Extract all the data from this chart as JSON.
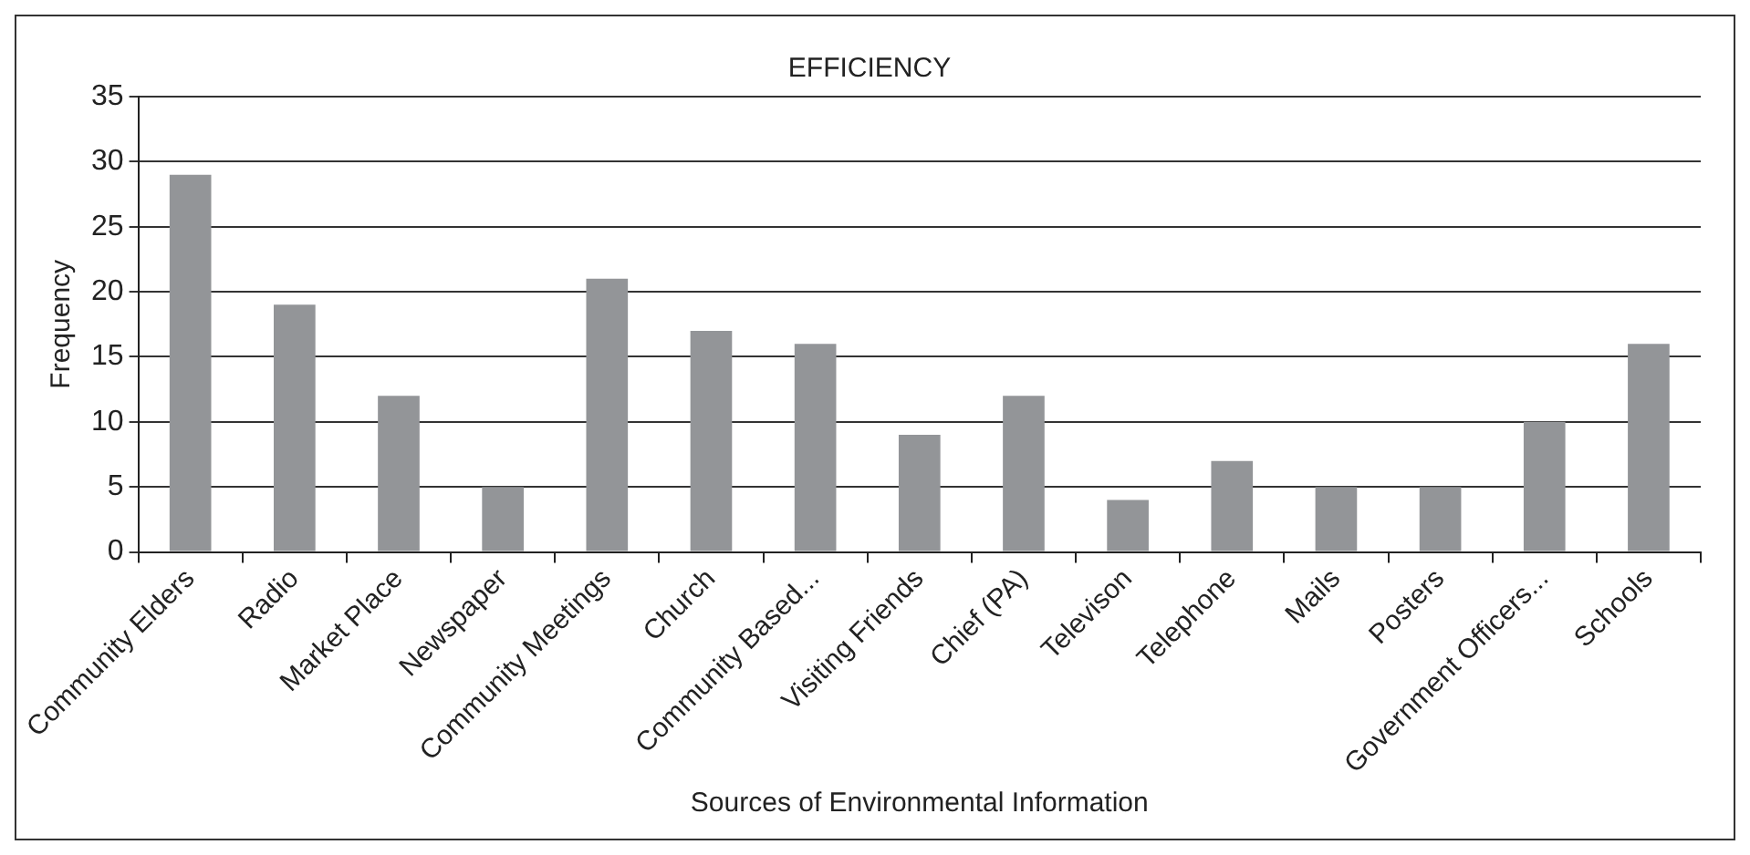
{
  "chart_data": {
    "type": "bar",
    "title": "EFFICIENCY",
    "xlabel": "Sources of Environmental Information",
    "ylabel": "Frequency",
    "categories": [
      "Community Elders",
      "Radio",
      "Market Place",
      "Newspaper",
      "Community Meetings",
      "Church",
      "Community Based...",
      "Visiting Friends",
      "Chief (PA)",
      "Televison",
      "Telephone",
      "Mails",
      "Posters",
      "Government Officers...",
      "Schools"
    ],
    "values": [
      29,
      19,
      12,
      5,
      21,
      17,
      16,
      9,
      12,
      4,
      7,
      5,
      5,
      10,
      16
    ],
    "color": "#939598",
    "ylim": [
      0,
      35
    ],
    "yticks": [
      0,
      5,
      10,
      15,
      20,
      25,
      30,
      35
    ],
    "grid": "y"
  }
}
